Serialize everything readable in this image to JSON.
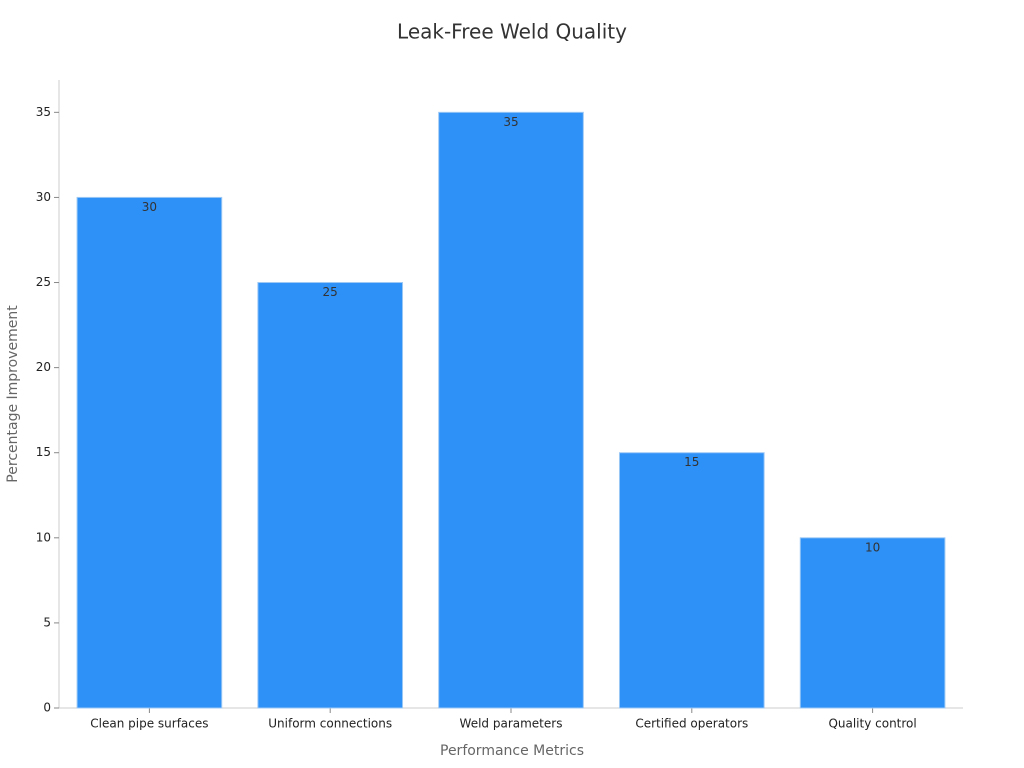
{
  "chart_data": {
    "type": "bar",
    "title": "Leak-Free Weld Quality",
    "x_label": "Performance Metrics",
    "y_label": "Percentage Improvement",
    "categories": [
      "Clean pipe surfaces",
      "Uniform connections",
      "Weld parameters",
      "Certified operators",
      "Quality control"
    ],
    "values": [
      30,
      25,
      35,
      15,
      10
    ],
    "color": "#2e91f8",
    "ylim": [
      0,
      36.9
    ],
    "yticks": [
      0,
      5,
      10,
      15,
      20,
      25,
      30,
      35
    ],
    "grid": false,
    "value_labels_shown": true
  }
}
